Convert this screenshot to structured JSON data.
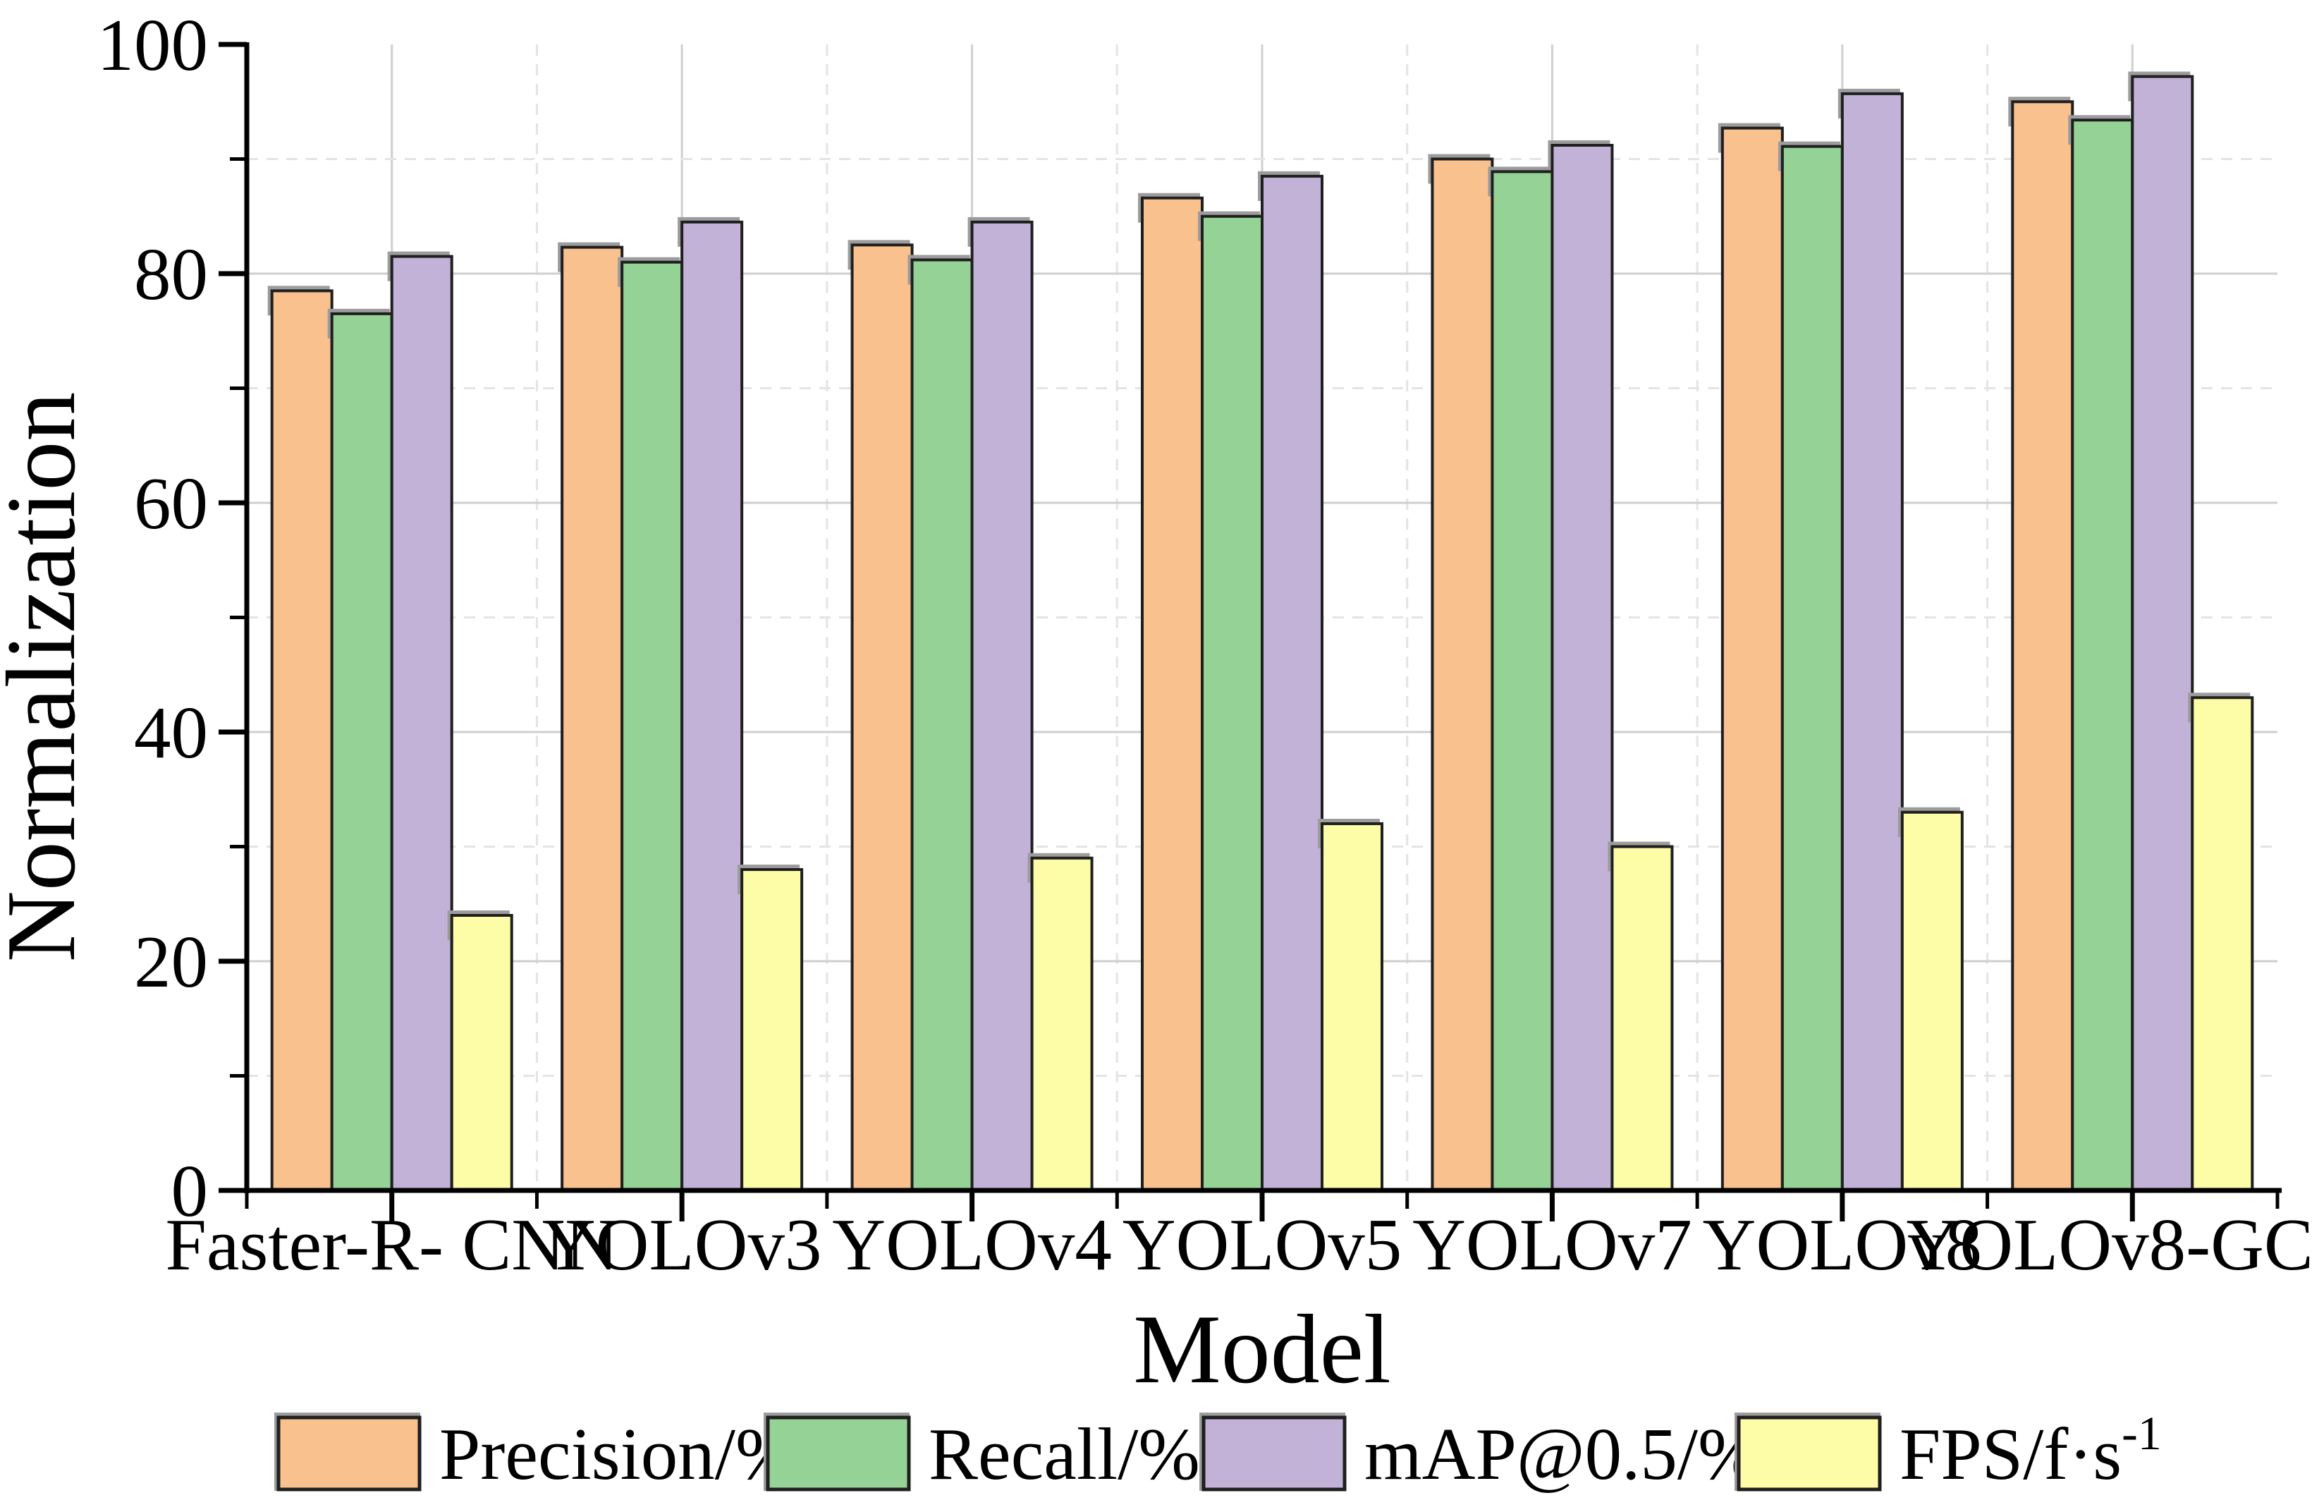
{
  "chart_data": {
    "type": "bar",
    "title": "",
    "xlabel": "Model",
    "ylabel": "Normalization",
    "ylim": [
      0,
      100
    ],
    "y_major_step": 20,
    "y_minor_step": 10,
    "y_tick_labels": [
      "0",
      "20",
      "40",
      "60",
      "80",
      "100"
    ],
    "categories": [
      "Faster-R- CNN",
      "YOLOv3",
      "YOLOv4",
      "YOLOv5",
      "YOLOv7",
      "YOLOv8",
      "YOLOv8-GCE"
    ],
    "series": [
      {
        "name": "Precision/%",
        "superscript": "",
        "color": "#F9C18D",
        "values": [
          78.5,
          82.3,
          82.5,
          86.6,
          90.0,
          92.7,
          95.0
        ]
      },
      {
        "name": "Recall/%",
        "superscript": "",
        "color": "#95D295",
        "values": [
          76.5,
          81.0,
          81.2,
          85.0,
          88.9,
          91.1,
          93.4
        ]
      },
      {
        "name": "mAP@0.5/%",
        "superscript": "",
        "color": "#C2B2D8",
        "values": [
          81.5,
          84.5,
          84.5,
          88.5,
          91.2,
          95.7,
          97.2
        ]
      },
      {
        "name": "FPS/f·s",
        "superscript": "-1",
        "color": "#FDFDA8",
        "values": [
          24,
          28,
          29,
          32,
          30,
          33,
          43
        ]
      }
    ],
    "grid": {
      "h_major": "solid",
      "h_minor": "dashed",
      "v_major": "solid",
      "v_minor": "dashed"
    },
    "legend_position": "bottom"
  },
  "style": {
    "background": "#ffffff",
    "axis_color": "#000000",
    "text_color": "#000000",
    "bar_stroke": "#1f1f1f",
    "shadow_color": "#9c9c9c",
    "grid_major_color": "#CFCFCF",
    "grid_minor_color": "#E4E4E4"
  }
}
